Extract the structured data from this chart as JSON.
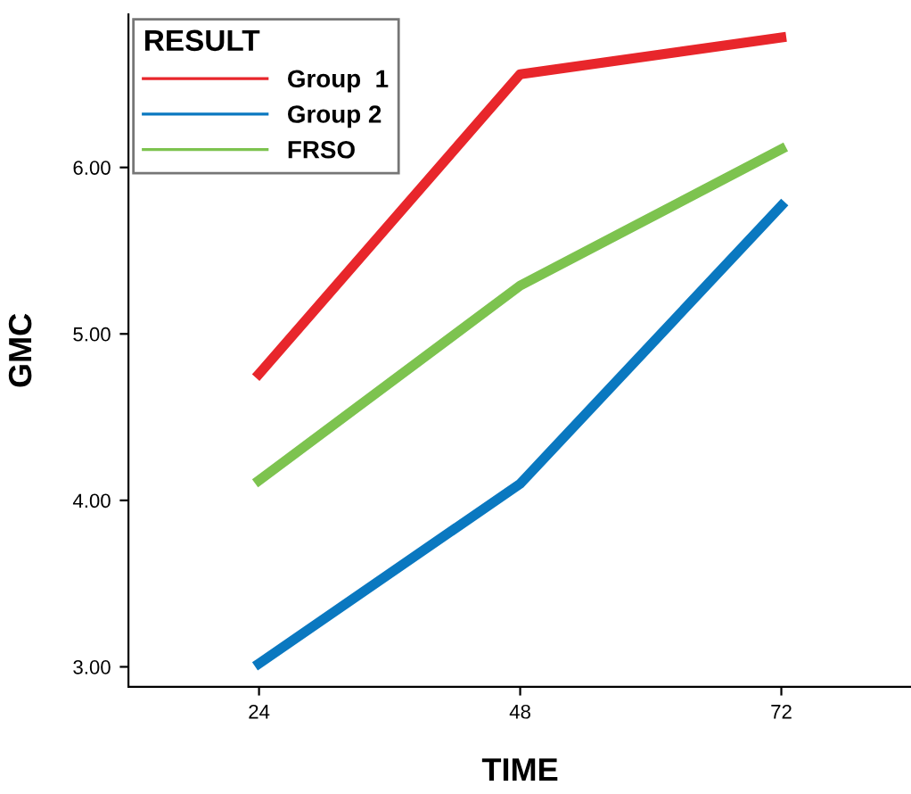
{
  "chart_data": {
    "type": "line",
    "xlabel": "TIME",
    "ylabel": "GMC",
    "legend_title": "RESULT",
    "x": [
      24,
      48,
      72
    ],
    "series": [
      {
        "name": "Group  1",
        "color": "#e8262b",
        "values": [
          4.76,
          6.56,
          6.78
        ]
      },
      {
        "name": "Group 2",
        "color": "#0a78c0",
        "values": [
          3.02,
          4.1,
          5.77
        ]
      },
      {
        "name": "FRSO",
        "color": "#7dc34f",
        "values": [
          4.12,
          5.29,
          6.11
        ]
      }
    ],
    "xlim": [
      12,
      84
    ],
    "xticks": [
      24,
      48,
      72
    ],
    "ylim": [
      2.88,
      6.92
    ],
    "yticks": [
      {
        "value": 3,
        "label": "3.00"
      },
      {
        "value": 4,
        "label": "4.00"
      },
      {
        "value": 5,
        "label": "5.00"
      },
      {
        "value": 6,
        "label": "6.00"
      }
    ],
    "grid": false,
    "legend": "top left",
    "marker": "none",
    "line_style": "solid"
  }
}
